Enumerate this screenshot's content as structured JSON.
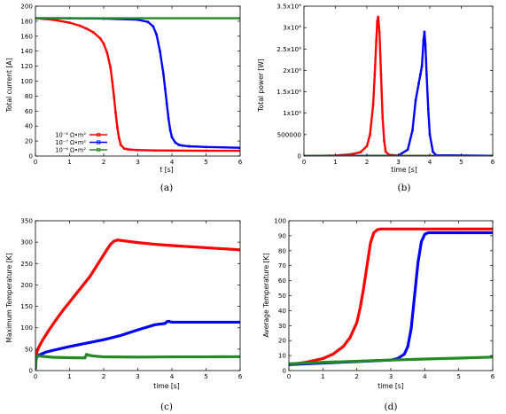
{
  "colors": {
    "red": "#ff0000",
    "blue": "#0000ff",
    "green": "#228b22"
  },
  "chart_data": [
    {
      "type": "line",
      "caption": "(a)",
      "xlabel": "t [s]",
      "ylabel": "Total current [A]",
      "xlim": [
        0,
        6
      ],
      "ylim": [
        0,
        200
      ],
      "xticks": [
        "0",
        "1",
        "2",
        "3",
        "4",
        "5",
        "6"
      ],
      "yticks": [
        "0",
        "20",
        "40",
        "60",
        "80",
        "100",
        "120",
        "140",
        "160",
        "180",
        "200"
      ],
      "legend": {
        "placement": "bottom-left",
        "entries": [
          "10⁻⁸ Ω•m²",
          "10⁻⁷ Ω•m²",
          "10⁻⁶ Ω•m²"
        ]
      },
      "series": [
        {
          "name": "10⁻⁸ Ω•m²",
          "color": "red",
          "x": [
            0,
            0.5,
            1.0,
            1.3,
            1.5,
            1.7,
            1.9,
            2.0,
            2.1,
            2.2,
            2.25,
            2.3,
            2.35,
            2.4,
            2.45,
            2.5,
            2.6,
            2.7,
            2.8,
            3.0,
            3.5,
            4.0,
            5.0,
            6.0
          ],
          "y": [
            184,
            182,
            178,
            174,
            170,
            165,
            157,
            150,
            138,
            118,
            100,
            80,
            58,
            38,
            24,
            15,
            10,
            9,
            8.5,
            8,
            7.5,
            7.3,
            7,
            7
          ]
        },
        {
          "name": "10⁻⁷ Ω•m²",
          "color": "blue",
          "x": [
            0,
            1.0,
            2.0,
            3.0,
            3.3,
            3.45,
            3.55,
            3.65,
            3.75,
            3.8,
            3.85,
            3.9,
            3.95,
            4.0,
            4.1,
            4.2,
            4.3,
            4.5,
            5.0,
            6.0
          ],
          "y": [
            184,
            184,
            183.5,
            182,
            179,
            173,
            162,
            140,
            110,
            90,
            70,
            50,
            35,
            25,
            18,
            15,
            14,
            13,
            12,
            11
          ]
        },
        {
          "name": "10⁻⁶ Ω•m²",
          "color": "green",
          "x": [
            0,
            6
          ],
          "y": [
            184,
            184
          ]
        }
      ]
    },
    {
      "type": "line",
      "caption": "(b)",
      "xlabel": "time [s]",
      "ylabel": "Total power [W]",
      "xlim": [
        0,
        6
      ],
      "ylim": [
        0,
        3500000
      ],
      "xticks": [
        "0",
        "1",
        "2",
        "3",
        "4",
        "5",
        "6"
      ],
      "yticks": [
        "0",
        "500000",
        "1x10⁶",
        "1.5x10⁶",
        "2x10⁶",
        "2.5x10⁶",
        "3x10⁶",
        "3.5x10⁶"
      ],
      "series": [
        {
          "color": "red",
          "x": [
            0,
            0.8,
            1.0,
            1.5,
            1.8,
            2.0,
            2.1,
            2.2,
            2.25,
            2.3,
            2.33,
            2.36,
            2.4,
            2.45,
            2.5,
            2.55,
            2.6,
            2.7,
            3.0,
            6.0
          ],
          "y": [
            0,
            8000,
            12000,
            40000,
            90000,
            230000,
            500000,
            1200000,
            1900000,
            2700000,
            3150000,
            3250000,
            2900000,
            1900000,
            900000,
            350000,
            100000,
            30000,
            10000,
            5000
          ]
        },
        {
          "color": "blue",
          "x": [
            0,
            3.0,
            3.3,
            3.45,
            3.55,
            3.65,
            3.7,
            3.75,
            3.8,
            3.83,
            3.86,
            3.9,
            3.95,
            4.0,
            4.1,
            4.2,
            6.0
          ],
          "y": [
            0,
            10000,
            150000,
            600000,
            1300000,
            1700000,
            1900000,
            2100000,
            2700000,
            2900000,
            2600000,
            1900000,
            1100000,
            500000,
            100000,
            20000,
            5000
          ]
        },
        {
          "color": "green",
          "x": [
            0,
            6
          ],
          "y": [
            0,
            0
          ]
        }
      ]
    },
    {
      "type": "line",
      "caption": "(c)",
      "xlabel": "time [s]",
      "ylabel": "Maximum Temperature [K]",
      "xlim": [
        0,
        6
      ],
      "ylim": [
        0,
        350
      ],
      "xticks": [
        "0",
        "1",
        "2",
        "3",
        "4",
        "5",
        "6"
      ],
      "yticks": [
        "0",
        "50",
        "100",
        "150",
        "200",
        "250",
        "300",
        "350"
      ],
      "series": [
        {
          "color": "red",
          "x": [
            0,
            0.02,
            0.05,
            0.1,
            0.2,
            0.4,
            0.6,
            0.8,
            1.0,
            1.3,
            1.6,
            1.9,
            2.1,
            2.2,
            2.3,
            2.4,
            2.5,
            2.7,
            3.0,
            3.5,
            4.0,
            5.0,
            6.0
          ],
          "y": [
            5,
            35,
            45,
            55,
            70,
            95,
            118,
            140,
            160,
            190,
            220,
            258,
            283,
            295,
            302,
            305,
            304,
            302,
            299,
            295,
            292,
            287,
            282
          ]
        },
        {
          "color": "blue",
          "x": [
            0,
            0.02,
            0.05,
            0.1,
            0.3,
            0.5,
            1.0,
            1.5,
            2.0,
            2.5,
            3.0,
            3.5,
            3.8,
            3.85,
            3.9,
            4.0,
            5.0,
            6.0
          ],
          "y": [
            5,
            28,
            33,
            36,
            43,
            47,
            56,
            64,
            72,
            82,
            95,
            107,
            110,
            114,
            115,
            113,
            113,
            113
          ]
        },
        {
          "color": "green",
          "x": [
            0,
            0.02,
            0.05,
            0.1,
            0.5,
            1.0,
            1.45,
            1.5,
            1.55,
            1.7,
            2.0,
            3.0,
            4.0,
            5.0,
            6.0
          ],
          "y": [
            5,
            33,
            35,
            34,
            31,
            30,
            29.5,
            38,
            36,
            34,
            32,
            31.5,
            32,
            32,
            32.5
          ]
        }
      ]
    },
    {
      "type": "line",
      "caption": "(d)",
      "xlabel": "time [s]",
      "ylabel": "Average Temperature [K]",
      "xlim": [
        0,
        6
      ],
      "ylim": [
        0,
        100
      ],
      "xticks": [
        "0",
        "1",
        "2",
        "3",
        "4",
        "5",
        "6"
      ],
      "yticks": [
        "0",
        "10",
        "20",
        "30",
        "40",
        "50",
        "60",
        "70",
        "80",
        "90",
        "100"
      ],
      "series": [
        {
          "color": "red",
          "x": [
            0,
            0.5,
            1.0,
            1.3,
            1.6,
            1.8,
            2.0,
            2.1,
            2.2,
            2.3,
            2.4,
            2.5,
            2.6,
            2.7,
            3.0,
            4.0,
            5.0,
            6.0
          ],
          "y": [
            4,
            5.5,
            8,
            11,
            16,
            22,
            32,
            42,
            55,
            70,
            85,
            92,
            94,
            94.5,
            94.5,
            94.5,
            94.5,
            94.5
          ]
        },
        {
          "color": "blue",
          "x": [
            0,
            1.0,
            2.0,
            2.5,
            3.0,
            3.2,
            3.4,
            3.5,
            3.6,
            3.7,
            3.8,
            3.9,
            4.0,
            4.1,
            4.5,
            5.0,
            6.0
          ],
          "y": [
            4,
            5,
            6,
            6.5,
            7,
            8,
            11,
            16,
            28,
            50,
            72,
            86,
            91,
            92,
            92,
            92,
            92
          ]
        },
        {
          "color": "green",
          "x": [
            0,
            1.0,
            2.0,
            3.0,
            4.0,
            5.0,
            6.0
          ],
          "y": [
            4.5,
            5.5,
            6.2,
            7,
            7.7,
            8.3,
            9
          ]
        }
      ]
    }
  ]
}
